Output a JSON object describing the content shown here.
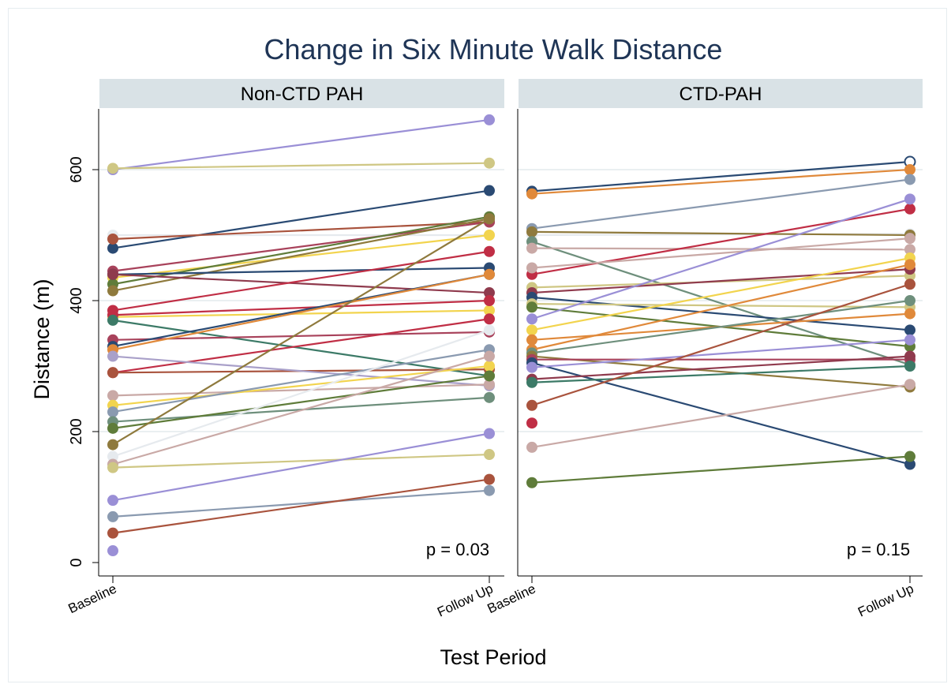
{
  "chart_data": {
    "type": "line",
    "title": "Change in Six Minute Walk Distance",
    "xlabel": "Test Period",
    "ylabel": "Distance (m)",
    "categories": [
      "Baseline",
      "Follow Up"
    ],
    "ylim": [
      0,
      700
    ],
    "yticks": [
      0,
      200,
      400,
      600
    ],
    "grid": true,
    "legend": "none",
    "panels": [
      {
        "name": "Non-CTD PAH",
        "annotation": "p = 0.03",
        "series": [
          {
            "values": [
              600,
              676
            ],
            "color": "#9a8fd6"
          },
          {
            "values": [
              602,
              610
            ],
            "color": "#cfc784"
          },
          {
            "values": [
              480,
              568
            ],
            "color": "#2a4a73"
          },
          {
            "values": [
              500,
              500
            ],
            "color": "#e6eaee"
          },
          {
            "values": [
              494,
              520
            ],
            "color": "#a9533d"
          },
          {
            "values": [
              445,
              520
            ],
            "color": "#a8425b"
          },
          {
            "values": [
              435,
              500
            ],
            "color": "#f2d44e"
          },
          {
            "values": [
              425,
              528
            ],
            "color": "#5f7c3a"
          },
          {
            "values": [
              415,
              525
            ],
            "color": "#8f7a3d"
          },
          {
            "values": [
              440,
              450
            ],
            "color": "#2a4a73"
          },
          {
            "values": [
              440,
              412
            ],
            "color": "#8f3a4d"
          },
          {
            "values": [
              385,
              475
            ],
            "color": "#c02e45"
          },
          {
            "values": [
              375,
              385
            ],
            "color": "#f2d44e"
          },
          {
            "values": [
              378,
              400
            ],
            "color": "#c02e45"
          },
          {
            "values": [
              370,
              285
            ],
            "color": "#3c7a67"
          },
          {
            "values": [
              340,
              352
            ],
            "color": "#a8425b"
          },
          {
            "values": [
              330,
              440
            ],
            "color": "#2a4a73"
          },
          {
            "values": [
              325,
              440
            ],
            "color": "#e0893a"
          },
          {
            "values": [
              290,
              372
            ],
            "color": "#c02e45"
          },
          {
            "values": [
              290,
              295
            ],
            "color": "#a9533d"
          },
          {
            "values": [
              315,
              270
            ],
            "color": "#a9a0c9"
          },
          {
            "values": [
              255,
              272
            ],
            "color": "#c9a9a6"
          },
          {
            "values": [
              240,
              300
            ],
            "color": "#f2d44e"
          },
          {
            "values": [
              230,
              325
            ],
            "color": "#8a9ab0"
          },
          {
            "values": [
              215,
              252
            ],
            "color": "#6e8f7c"
          },
          {
            "values": [
              205,
              285
            ],
            "color": "#5f7c3a"
          },
          {
            "values": [
              180,
              525
            ],
            "color": "#8f7a3d"
          },
          {
            "values": [
              162,
              355
            ],
            "color": "#e6eaee"
          },
          {
            "values": [
              150,
              315
            ],
            "color": "#c9a9a6"
          },
          {
            "values": [
              145,
              165
            ],
            "color": "#cfc784"
          },
          {
            "values": [
              95,
              197
            ],
            "color": "#9a8fd6"
          },
          {
            "values": [
              70,
              110
            ],
            "color": "#8a9ab0"
          },
          {
            "values": [
              45,
              127
            ],
            "color": "#a9533d"
          },
          {
            "values": [
              18,
              null
            ],
            "color": "#9a8fd6"
          }
        ]
      },
      {
        "name": "CTD-PAH",
        "annotation": "p = 0.15",
        "series": [
          {
            "values": [
              567,
              612
            ],
            "color": "#2a4a73",
            "hollowEnd": true
          },
          {
            "values": [
              563,
              600
            ],
            "color": "#e0893a"
          },
          {
            "values": [
              510,
              585
            ],
            "color": "#8a9ab0"
          },
          {
            "values": [
              500,
              502
            ],
            "color": "#e6eaee"
          },
          {
            "values": [
              505,
              500
            ],
            "color": "#8f7a3d"
          },
          {
            "values": [
              490,
              302
            ],
            "color": "#6e8f7c"
          },
          {
            "values": [
              480,
              478
            ],
            "color": "#c9a9a6"
          },
          {
            "values": [
              440,
              540
            ],
            "color": "#c02e45"
          },
          {
            "values": [
              450,
              495
            ],
            "color": "#c9a9a6"
          },
          {
            "values": [
              420,
              438
            ],
            "color": "#cfc784"
          },
          {
            "values": [
              412,
              448
            ],
            "color": "#8f3a4d"
          },
          {
            "values": [
              405,
              355
            ],
            "color": "#2a4a73"
          },
          {
            "values": [
              395,
              390
            ],
            "color": "#cfc784"
          },
          {
            "values": [
              390,
              330
            ],
            "color": "#5f7c3a"
          },
          {
            "values": [
              372,
              555
            ],
            "color": "#9a8fd6"
          },
          {
            "values": [
              355,
              465
            ],
            "color": "#f2d44e"
          },
          {
            "values": [
              340,
              380
            ],
            "color": "#e0893a"
          },
          {
            "values": [
              325,
              455
            ],
            "color": "#e0893a"
          },
          {
            "values": [
              320,
              400
            ],
            "color": "#6e8f7c"
          },
          {
            "values": [
              315,
              268
            ],
            "color": "#8f7a3d"
          },
          {
            "values": [
              310,
              310
            ],
            "color": "#a8425b"
          },
          {
            "values": [
              305,
              150
            ],
            "color": "#2a4a73"
          },
          {
            "values": [
              298,
              340
            ],
            "color": "#9a8fd6"
          },
          {
            "values": [
              280,
              315
            ],
            "color": "#8f3a4d"
          },
          {
            "values": [
              275,
              300
            ],
            "color": "#3c7a67"
          },
          {
            "values": [
              240,
              425
            ],
            "color": "#a9533d"
          },
          {
            "values": [
              213,
              null
            ],
            "color": "#c02e45"
          },
          {
            "values": [
              176,
              272
            ],
            "color": "#c9a9a6"
          },
          {
            "values": [
              122,
              162
            ],
            "color": "#5f7c3a"
          }
        ]
      }
    ]
  }
}
